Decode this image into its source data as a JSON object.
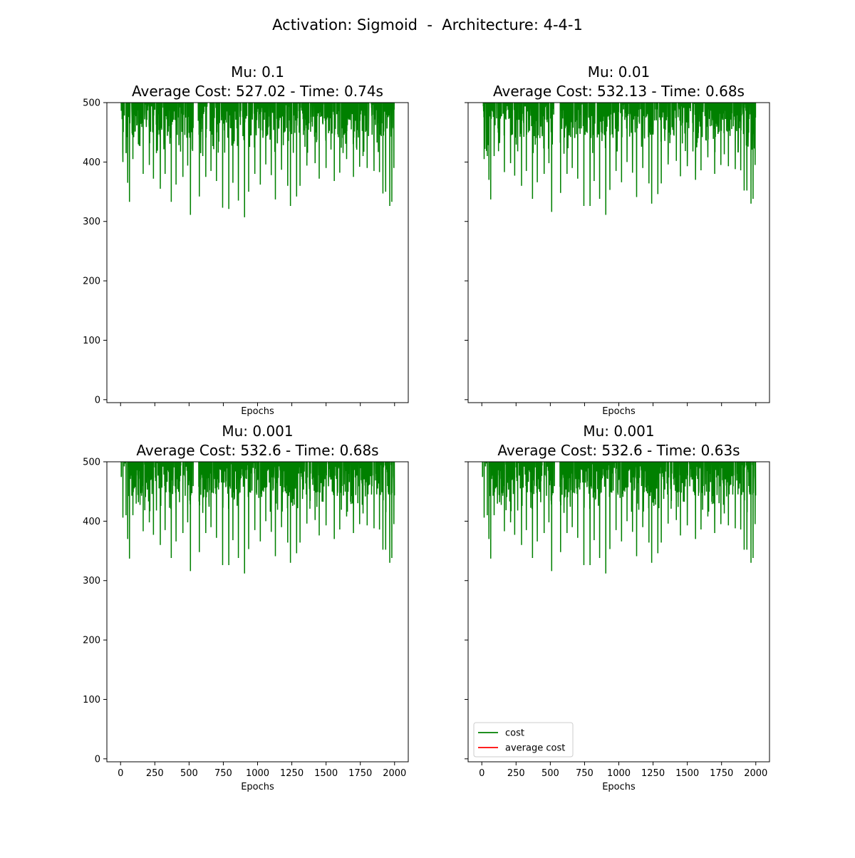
{
  "figure": {
    "suptitle": "Activation: Sigmoid  -  Architecture: 4-4-1"
  },
  "colors": {
    "cost": "#008000",
    "average_cost": "#ff0000"
  },
  "chart_data": [
    {
      "type": "line",
      "title_line1": "Mu: 0.1",
      "title_line2": "Average Cost: 527.02 - Time: 0.74s",
      "xlabel": "Epochs",
      "ylabel": "",
      "xlim": [
        -100,
        2100
      ],
      "ylim": [
        -5,
        500
      ],
      "xticks": [
        0,
        250,
        500,
        750,
        1000,
        1250,
        1500,
        1750,
        2000
      ],
      "yticks": [
        0,
        100,
        200,
        300,
        400,
        500
      ],
      "show_xticklabels": false,
      "show_yticklabels": true,
      "seed": 11,
      "dips": [
        [
          17,
          400
        ],
        [
          40,
          415
        ],
        [
          52,
          365
        ],
        [
          65,
          333
        ],
        [
          90,
          405
        ],
        [
          130,
          430
        ],
        [
          165,
          380
        ],
        [
          210,
          395
        ],
        [
          240,
          372
        ],
        [
          262,
          415
        ],
        [
          290,
          355
        ],
        [
          325,
          380
        ],
        [
          370,
          333
        ],
        [
          405,
          362
        ],
        [
          455,
          375
        ],
        [
          490,
          394
        ],
        [
          510,
          311
        ],
        [
          575,
          342
        ],
        [
          600,
          410
        ],
        [
          622,
          375
        ],
        [
          660,
          385
        ],
        [
          700,
          368
        ],
        [
          745,
          323
        ],
        [
          790,
          321
        ],
        [
          820,
          365
        ],
        [
          860,
          335
        ],
        [
          905,
          307
        ],
        [
          935,
          350
        ],
        [
          980,
          380
        ],
        [
          1020,
          362
        ],
        [
          1060,
          396
        ],
        [
          1100,
          378
        ],
        [
          1130,
          337
        ],
        [
          1175,
          387
        ],
        [
          1220,
          360
        ],
        [
          1240,
          326
        ],
        [
          1285,
          342
        ],
        [
          1310,
          360
        ],
        [
          1360,
          394
        ],
        [
          1420,
          398
        ],
        [
          1450,
          372
        ],
        [
          1500,
          390
        ],
        [
          1560,
          368
        ],
        [
          1600,
          382
        ],
        [
          1650,
          405
        ],
        [
          1700,
          375
        ],
        [
          1745,
          392
        ],
        [
          1770,
          410
        ],
        [
          1800,
          390
        ],
        [
          1850,
          385
        ],
        [
          1890,
          383
        ],
        [
          1915,
          347
        ],
        [
          1935,
          350
        ],
        [
          1965,
          326
        ],
        [
          1980,
          333
        ],
        [
          1995,
          390
        ]
      ],
      "series": [
        {
          "name": "cost",
          "description": "dense noisy cost curve clipped at 500",
          "n_epochs": 2000
        },
        {
          "name": "average cost",
          "description": "average cost line (above visible range)"
        }
      ]
    },
    {
      "type": "line",
      "title_line1": "Mu: 0.01",
      "title_line2": "Average Cost: 532.13 - Time: 0.68s",
      "xlabel": "Epochs",
      "ylabel": "",
      "xlim": [
        -100,
        2100
      ],
      "ylim": [
        -5,
        500
      ],
      "xticks": [
        0,
        250,
        500,
        750,
        1000,
        1250,
        1500,
        1750,
        2000
      ],
      "yticks": [
        0,
        100,
        200,
        300,
        400,
        500
      ],
      "show_xticklabels": false,
      "show_yticklabels": false,
      "seed": 23,
      "dips": [
        [
          17,
          405
        ],
        [
          40,
          410
        ],
        [
          52,
          370
        ],
        [
          65,
          337
        ],
        [
          90,
          410
        ],
        [
          130,
          432
        ],
        [
          165,
          383
        ],
        [
          210,
          398
        ],
        [
          240,
          377
        ],
        [
          262,
          418
        ],
        [
          290,
          360
        ],
        [
          325,
          385
        ],
        [
          370,
          338
        ],
        [
          405,
          366
        ],
        [
          455,
          380
        ],
        [
          490,
          398
        ],
        [
          510,
          316
        ],
        [
          575,
          348
        ],
        [
          600,
          414
        ],
        [
          622,
          380
        ],
        [
          660,
          390
        ],
        [
          700,
          372
        ],
        [
          745,
          326
        ],
        [
          790,
          326
        ],
        [
          820,
          368
        ],
        [
          860,
          338
        ],
        [
          905,
          311
        ],
        [
          935,
          353
        ],
        [
          980,
          385
        ],
        [
          1020,
          366
        ],
        [
          1060,
          400
        ],
        [
          1100,
          382
        ],
        [
          1130,
          341
        ],
        [
          1175,
          390
        ],
        [
          1220,
          364
        ],
        [
          1240,
          330
        ],
        [
          1285,
          346
        ],
        [
          1310,
          364
        ],
        [
          1360,
          396
        ],
        [
          1420,
          402
        ],
        [
          1450,
          376
        ],
        [
          1500,
          393
        ],
        [
          1560,
          370
        ],
        [
          1600,
          386
        ],
        [
          1650,
          408
        ],
        [
          1700,
          380
        ],
        [
          1745,
          395
        ],
        [
          1770,
          413
        ],
        [
          1800,
          393
        ],
        [
          1850,
          388
        ],
        [
          1890,
          386
        ],
        [
          1915,
          352
        ],
        [
          1935,
          352
        ],
        [
          1965,
          330
        ],
        [
          1980,
          338
        ],
        [
          1995,
          395
        ]
      ],
      "series": [
        {
          "name": "cost",
          "description": "dense noisy cost curve clipped at 500",
          "n_epochs": 2000
        },
        {
          "name": "average cost",
          "description": "average cost line (above visible range)"
        }
      ]
    },
    {
      "type": "line",
      "title_line1": "Mu: 0.001",
      "title_line2": "Average Cost: 532.6 - Time: 0.68s",
      "xlabel": "Epochs",
      "ylabel": "",
      "xlim": [
        -100,
        2100
      ],
      "ylim": [
        -5,
        500
      ],
      "xticks": [
        0,
        250,
        500,
        750,
        1000,
        1250,
        1500,
        1750,
        2000
      ],
      "yticks": [
        0,
        100,
        200,
        300,
        400,
        500
      ],
      "show_xticklabels": true,
      "show_yticklabels": true,
      "seed": 37,
      "dips": [
        [
          17,
          406
        ],
        [
          40,
          410
        ],
        [
          52,
          370
        ],
        [
          65,
          337
        ],
        [
          90,
          410
        ],
        [
          130,
          432
        ],
        [
          165,
          383
        ],
        [
          210,
          398
        ],
        [
          240,
          377
        ],
        [
          262,
          418
        ],
        [
          290,
          360
        ],
        [
          325,
          385
        ],
        [
          370,
          338
        ],
        [
          405,
          366
        ],
        [
          455,
          380
        ],
        [
          490,
          398
        ],
        [
          510,
          316
        ],
        [
          575,
          348
        ],
        [
          600,
          414
        ],
        [
          622,
          380
        ],
        [
          660,
          390
        ],
        [
          700,
          372
        ],
        [
          745,
          326
        ],
        [
          790,
          326
        ],
        [
          820,
          368
        ],
        [
          860,
          338
        ],
        [
          905,
          312
        ],
        [
          935,
          353
        ],
        [
          980,
          385
        ],
        [
          1020,
          366
        ],
        [
          1060,
          400
        ],
        [
          1100,
          382
        ],
        [
          1130,
          341
        ],
        [
          1175,
          390
        ],
        [
          1220,
          364
        ],
        [
          1240,
          330
        ],
        [
          1285,
          346
        ],
        [
          1310,
          364
        ],
        [
          1360,
          396
        ],
        [
          1420,
          402
        ],
        [
          1450,
          376
        ],
        [
          1500,
          393
        ],
        [
          1560,
          370
        ],
        [
          1600,
          386
        ],
        [
          1650,
          408
        ],
        [
          1700,
          380
        ],
        [
          1745,
          395
        ],
        [
          1770,
          413
        ],
        [
          1800,
          393
        ],
        [
          1850,
          388
        ],
        [
          1890,
          386
        ],
        [
          1915,
          352
        ],
        [
          1935,
          352
        ],
        [
          1965,
          330
        ],
        [
          1980,
          338
        ],
        [
          1995,
          395
        ]
      ],
      "series": [
        {
          "name": "cost",
          "description": "dense noisy cost curve clipped at 500",
          "n_epochs": 2000
        },
        {
          "name": "average cost",
          "description": "average cost line (above visible range)"
        }
      ]
    },
    {
      "type": "line",
      "title_line1": "Mu: 0.001",
      "title_line2": "Average Cost: 532.6 - Time: 0.63s",
      "xlabel": "Epochs",
      "ylabel": "",
      "xlim": [
        -100,
        2100
      ],
      "ylim": [
        -5,
        500
      ],
      "xticks": [
        0,
        250,
        500,
        750,
        1000,
        1250,
        1500,
        1750,
        2000
      ],
      "yticks": [
        0,
        100,
        200,
        300,
        400,
        500
      ],
      "show_xticklabels": true,
      "show_yticklabels": false,
      "seed": 37,
      "dips": [
        [
          17,
          406
        ],
        [
          40,
          410
        ],
        [
          52,
          370
        ],
        [
          65,
          337
        ],
        [
          90,
          410
        ],
        [
          130,
          432
        ],
        [
          165,
          383
        ],
        [
          210,
          398
        ],
        [
          240,
          377
        ],
        [
          262,
          418
        ],
        [
          290,
          360
        ],
        [
          325,
          385
        ],
        [
          370,
          338
        ],
        [
          405,
          366
        ],
        [
          455,
          380
        ],
        [
          490,
          398
        ],
        [
          510,
          316
        ],
        [
          575,
          348
        ],
        [
          600,
          414
        ],
        [
          622,
          380
        ],
        [
          660,
          390
        ],
        [
          700,
          372
        ],
        [
          745,
          326
        ],
        [
          790,
          326
        ],
        [
          820,
          368
        ],
        [
          860,
          338
        ],
        [
          905,
          312
        ],
        [
          935,
          353
        ],
        [
          980,
          385
        ],
        [
          1020,
          366
        ],
        [
          1060,
          400
        ],
        [
          1100,
          382
        ],
        [
          1130,
          341
        ],
        [
          1175,
          390
        ],
        [
          1220,
          364
        ],
        [
          1240,
          330
        ],
        [
          1285,
          346
        ],
        [
          1310,
          364
        ],
        [
          1360,
          396
        ],
        [
          1420,
          402
        ],
        [
          1450,
          376
        ],
        [
          1500,
          393
        ],
        [
          1560,
          370
        ],
        [
          1600,
          386
        ],
        [
          1650,
          408
        ],
        [
          1700,
          380
        ],
        [
          1745,
          395
        ],
        [
          1770,
          413
        ],
        [
          1800,
          393
        ],
        [
          1850,
          388
        ],
        [
          1890,
          386
        ],
        [
          1915,
          352
        ],
        [
          1935,
          352
        ],
        [
          1965,
          330
        ],
        [
          1980,
          338
        ],
        [
          1995,
          395
        ]
      ],
      "legend": {
        "placement": "lower-left",
        "entries": [
          "cost",
          "average cost"
        ]
      },
      "series": [
        {
          "name": "cost",
          "description": "dense noisy cost curve clipped at 500",
          "n_epochs": 2000
        },
        {
          "name": "average cost",
          "description": "average cost line (above visible range)"
        }
      ]
    }
  ]
}
